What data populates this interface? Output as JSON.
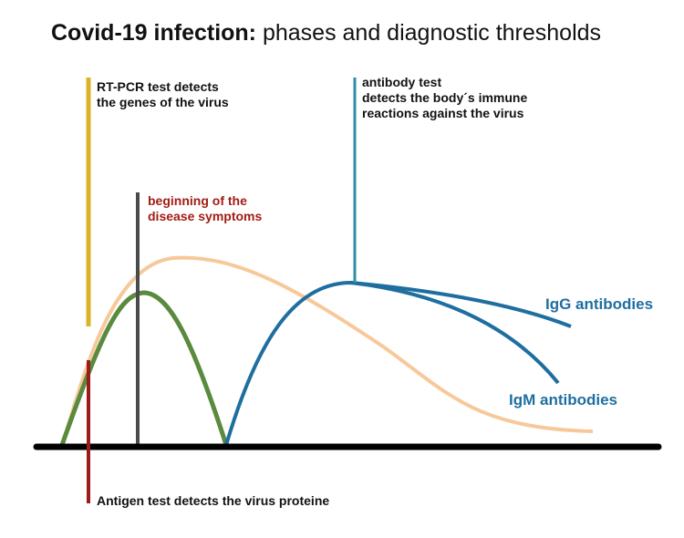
{
  "title": {
    "bold": "Covid-19 infection:",
    "rest": " phases and diagnostic thresholds"
  },
  "labels": {
    "rtpcr": [
      "RT-PCR test detects",
      "the genes of the virus"
    ],
    "symptoms": [
      "beginning of the",
      "disease symptoms"
    ],
    "antibody": [
      "antibody test",
      "detects the body´s immune",
      "reactions against the virus"
    ],
    "antigen": "Antigen test detects the virus proteine",
    "igg": "IgG antibodies",
    "igm": "IgM antibodies"
  },
  "colors": {
    "rtpcr": "#d9b429",
    "symptoms_line": "#4a4a4a",
    "symptoms_text": "#a11d14",
    "antibody": "#2e8fa6",
    "antigen": "#9b1b1b",
    "virus_load": "#f7c99a",
    "antigen_curve": "#5a8a3e",
    "antibody_curve": "#1f6ea0",
    "baseline": "#000000"
  }
}
